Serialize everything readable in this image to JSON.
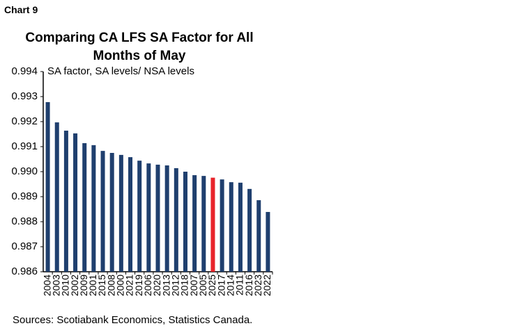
{
  "chart_data": {
    "type": "bar",
    "chart_label": "Chart 9",
    "title": "Comparing CA LFS SA Factor for All Months of May",
    "y_label": "SA factor, SA levels/ NSA levels",
    "source": "Sources: Scotiabank Economics, Statistics Canada.",
    "categories": [
      "2004",
      "2003",
      "2010",
      "2002",
      "2009",
      "2001",
      "2015",
      "2008",
      "2000",
      "2021",
      "2019",
      "2006",
      "2020",
      "2013",
      "2012",
      "2018",
      "2007",
      "2005",
      "2025",
      "2017",
      "2014",
      "2011",
      "2016",
      "2023",
      "2022"
    ],
    "values": [
      0.99278,
      0.99197,
      0.99164,
      0.99153,
      0.99114,
      0.99106,
      0.99083,
      0.99075,
      0.99067,
      0.99058,
      0.99044,
      0.99033,
      0.99028,
      0.99025,
      0.99014,
      0.99,
      0.98986,
      0.98983,
      0.98976,
      0.98969,
      0.98958,
      0.98956,
      0.98931,
      0.98886,
      0.98839
    ],
    "colors": [
      "#1f3f6e",
      "#1f3f6e",
      "#1f3f6e",
      "#1f3f6e",
      "#1f3f6e",
      "#1f3f6e",
      "#1f3f6e",
      "#1f3f6e",
      "#1f3f6e",
      "#1f3f6e",
      "#1f3f6e",
      "#1f3f6e",
      "#1f3f6e",
      "#1f3f6e",
      "#1f3f6e",
      "#1f3f6e",
      "#1f3f6e",
      "#1f3f6e",
      "#e8242b",
      "#1f3f6e",
      "#1f3f6e",
      "#1f3f6e",
      "#1f3f6e",
      "#1f3f6e",
      "#1f3f6e"
    ],
    "ylim": [
      0.986,
      0.994
    ],
    "yticks": [
      0.986,
      0.987,
      0.988,
      0.989,
      {
        "value": 0.99,
        "label": "0.990"
      },
      0.991,
      0.992,
      0.993,
      0.994
    ]
  }
}
